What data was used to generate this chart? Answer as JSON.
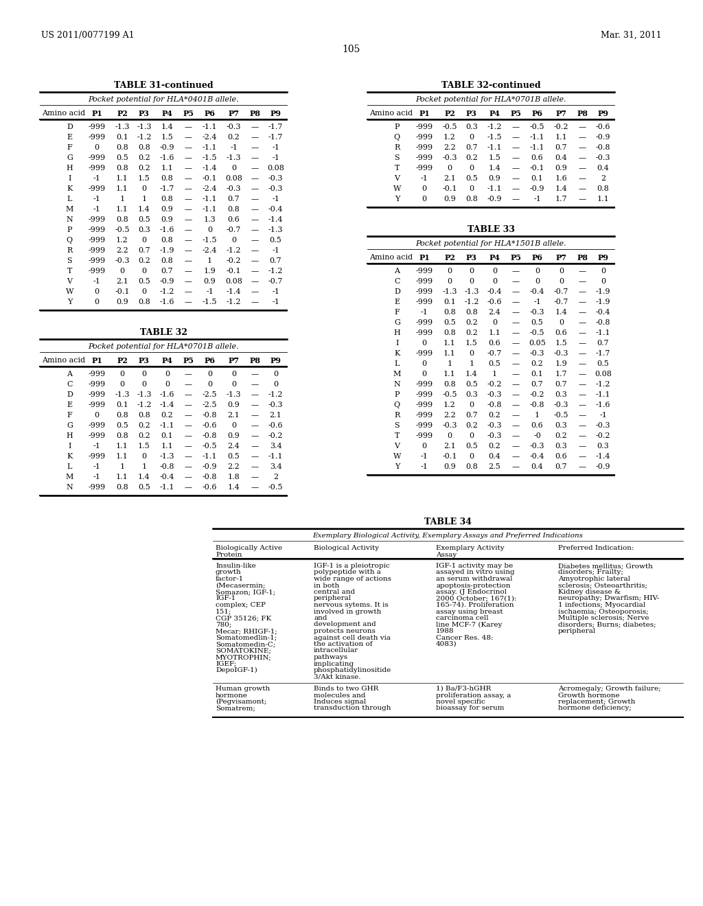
{
  "header_left": "US 2011/0077199 A1",
  "header_right": "Mar. 31, 2011",
  "page_number": "105",
  "bg_color": "#ffffff",
  "table31": {
    "title": "TABLE 31-continued",
    "subtitle": "Pocket potential for HLA*0401B allele.",
    "columns": [
      "Amino acid",
      "P1",
      "P2",
      "P3",
      "P4",
      "P5",
      "P6",
      "P7",
      "P8",
      "P9"
    ],
    "rows": [
      [
        "D",
        "-999",
        "-1.3",
        "-1.3",
        "1.4",
        "—",
        "-1.1",
        "-0.3",
        "—",
        "-1.7"
      ],
      [
        "E",
        "-999",
        "0.1",
        "-1.2",
        "1.5",
        "—",
        "-2.4",
        "0.2",
        "—",
        "-1.7"
      ],
      [
        "F",
        "0",
        "0.8",
        "0.8",
        "-0.9",
        "—",
        "-1.1",
        "-1",
        "—",
        "-1"
      ],
      [
        "G",
        "-999",
        "0.5",
        "0.2",
        "-1.6",
        "—",
        "-1.5",
        "-1.3",
        "—",
        "-1"
      ],
      [
        "H",
        "-999",
        "0.8",
        "0.2",
        "1.1",
        "—",
        "-1.4",
        "0",
        "—",
        "0.08"
      ],
      [
        "I",
        "-1",
        "1.1",
        "1.5",
        "0.8",
        "—",
        "-0.1",
        "0.08",
        "—",
        "-0.3"
      ],
      [
        "K",
        "-999",
        "1.1",
        "0",
        "-1.7",
        "—",
        "-2.4",
        "-0.3",
        "—",
        "-0.3"
      ],
      [
        "L",
        "-1",
        "1",
        "1",
        "0.8",
        "—",
        "-1.1",
        "0.7",
        "—",
        "-1"
      ],
      [
        "M",
        "-1",
        "1.1",
        "1.4",
        "0.9",
        "—",
        "-1.1",
        "0.8",
        "—",
        "-0.4"
      ],
      [
        "N",
        "-999",
        "0.8",
        "0.5",
        "0.9",
        "—",
        "1.3",
        "0.6",
        "—",
        "-1.4"
      ],
      [
        "P",
        "-999",
        "-0.5",
        "0.3",
        "-1.6",
        "—",
        "0",
        "-0.7",
        "—",
        "-1.3"
      ],
      [
        "Q",
        "-999",
        "1.2",
        "0",
        "0.8",
        "—",
        "-1.5",
        "0",
        "—",
        "0.5"
      ],
      [
        "R",
        "-999",
        "2.2",
        "0.7",
        "-1.9",
        "—",
        "-2.4",
        "-1.2",
        "—",
        "-1"
      ],
      [
        "S",
        "-999",
        "-0.3",
        "0.2",
        "0.8",
        "—",
        "1",
        "-0.2",
        "—",
        "0.7"
      ],
      [
        "T",
        "-999",
        "0",
        "0",
        "0.7",
        "—",
        "1.9",
        "-0.1",
        "—",
        "-1.2"
      ],
      [
        "V",
        "-1",
        "2.1",
        "0.5",
        "-0.9",
        "—",
        "0.9",
        "0.08",
        "—",
        "-0.7"
      ],
      [
        "W",
        "0",
        "-0.1",
        "0",
        "-1.2",
        "—",
        "-1",
        "-1.4",
        "—",
        "-1"
      ],
      [
        "Y",
        "0",
        "0.9",
        "0.8",
        "-1.6",
        "—",
        "-1.5",
        "-1.2",
        "—",
        "-1"
      ]
    ]
  },
  "table32": {
    "title": "TABLE 32",
    "subtitle": "Pocket potential for HLA*0701B allele.",
    "columns": [
      "Amino acid",
      "P1",
      "P2",
      "P3",
      "P4",
      "P5",
      "P6",
      "P7",
      "P8",
      "P9"
    ],
    "rows": [
      [
        "A",
        "-999",
        "0",
        "0",
        "0",
        "—",
        "0",
        "0",
        "—",
        "0"
      ],
      [
        "C",
        "-999",
        "0",
        "0",
        "0",
        "—",
        "0",
        "0",
        "—",
        "0"
      ],
      [
        "D",
        "-999",
        "-1.3",
        "-1.3",
        "-1.6",
        "—",
        "-2.5",
        "-1.3",
        "—",
        "-1.2"
      ],
      [
        "E",
        "-999",
        "0.1",
        "-1.2",
        "-1.4",
        "—",
        "-2.5",
        "0.9",
        "—",
        "-0.3"
      ],
      [
        "F",
        "0",
        "0.8",
        "0.8",
        "0.2",
        "—",
        "-0.8",
        "2.1",
        "—",
        "2.1"
      ],
      [
        "G",
        "-999",
        "0.5",
        "0.2",
        "-1.1",
        "—",
        "-0.6",
        "0",
        "—",
        "-0.6"
      ],
      [
        "H",
        "-999",
        "0.8",
        "0.2",
        "0.1",
        "—",
        "-0.8",
        "0.9",
        "—",
        "-0.2"
      ],
      [
        "I",
        "-1",
        "1.1",
        "1.5",
        "1.1",
        "—",
        "-0.5",
        "2.4",
        "—",
        "3.4"
      ],
      [
        "K",
        "-999",
        "1.1",
        "0",
        "-1.3",
        "—",
        "-1.1",
        "0.5",
        "—",
        "-1.1"
      ],
      [
        "L",
        "-1",
        "1",
        "1",
        "-0.8",
        "—",
        "-0.9",
        "2.2",
        "—",
        "3.4"
      ],
      [
        "M",
        "-1",
        "1.1",
        "1.4",
        "-0.4",
        "—",
        "-0.8",
        "1.8",
        "—",
        "2"
      ],
      [
        "N",
        "-999",
        "0.8",
        "0.5",
        "-1.1",
        "—",
        "-0.6",
        "1.4",
        "—",
        "-0.5"
      ]
    ]
  },
  "table32cont": {
    "title": "TABLE 32-continued",
    "subtitle": "Pocket potential for HLA*0701B allele.",
    "columns": [
      "Amino acid",
      "P1",
      "P2",
      "P3",
      "P4",
      "P5",
      "P6",
      "P7",
      "P8",
      "P9"
    ],
    "rows": [
      [
        "P",
        "-999",
        "-0.5",
        "0.3",
        "-1.2",
        "—",
        "-0.5",
        "-0.2",
        "—",
        "-0.6"
      ],
      [
        "Q",
        "-999",
        "1.2",
        "0",
        "-1.5",
        "—",
        "-1.1",
        "1.1",
        "—",
        "-0.9"
      ],
      [
        "R",
        "-999",
        "2.2",
        "0.7",
        "-1.1",
        "—",
        "-1.1",
        "0.7",
        "—",
        "-0.8"
      ],
      [
        "S",
        "-999",
        "-0.3",
        "0.2",
        "1.5",
        "—",
        "0.6",
        "0.4",
        "—",
        "-0.3"
      ],
      [
        "T",
        "-999",
        "0",
        "0",
        "1.4",
        "—",
        "-0.1",
        "0.9",
        "—",
        "0.4"
      ],
      [
        "V",
        "-1",
        "2.1",
        "0.5",
        "0.9",
        "—",
        "0.1",
        "1.6",
        "—",
        "2"
      ],
      [
        "W",
        "0",
        "-0.1",
        "0",
        "-1.1",
        "—",
        "-0.9",
        "1.4",
        "—",
        "0.8"
      ],
      [
        "Y",
        "0",
        "0.9",
        "0.8",
        "-0.9",
        "—",
        "-1",
        "1.7",
        "—",
        "1.1"
      ]
    ]
  },
  "table33": {
    "title": "TABLE 33",
    "subtitle": "Pocket potential for HLA*1501B allele.",
    "columns": [
      "Amino acid",
      "P1",
      "P2",
      "P3",
      "P4",
      "P5",
      "P6",
      "P7",
      "P8",
      "P9"
    ],
    "rows": [
      [
        "A",
        "-999",
        "0",
        "0",
        "0",
        "—",
        "0",
        "0",
        "—",
        "0"
      ],
      [
        "C",
        "-999",
        "0",
        "0",
        "0",
        "—",
        "0",
        "0",
        "—",
        "0"
      ],
      [
        "D",
        "-999",
        "-1.3",
        "-1.3",
        "-0.4",
        "—",
        "-0.4",
        "-0.7",
        "—",
        "-1.9"
      ],
      [
        "E",
        "-999",
        "0.1",
        "-1.2",
        "-0.6",
        "—",
        "-1",
        "-0.7",
        "—",
        "-1.9"
      ],
      [
        "F",
        "-1",
        "0.8",
        "0.8",
        "2.4",
        "—",
        "-0.3",
        "1.4",
        "—",
        "-0.4"
      ],
      [
        "G",
        "-999",
        "0.5",
        "0.2",
        "0",
        "—",
        "0.5",
        "0",
        "—",
        "-0.8"
      ],
      [
        "H",
        "-999",
        "0.8",
        "0.2",
        "1.1",
        "—",
        "-0.5",
        "0.6",
        "—",
        "-1.1"
      ],
      [
        "I",
        "0",
        "1.1",
        "1.5",
        "0.6",
        "—",
        "0.05",
        "1.5",
        "—",
        "0.7"
      ],
      [
        "K",
        "-999",
        "1.1",
        "0",
        "-0.7",
        "—",
        "-0.3",
        "-0.3",
        "—",
        "-1.7"
      ],
      [
        "L",
        "0",
        "1",
        "1",
        "0.5",
        "—",
        "0.2",
        "1.9",
        "—",
        "0.5"
      ],
      [
        "M",
        "0",
        "1.1",
        "1.4",
        "1",
        "—",
        "0.1",
        "1.7",
        "—",
        "0.08"
      ],
      [
        "N",
        "-999",
        "0.8",
        "0.5",
        "-0.2",
        "—",
        "0.7",
        "0.7",
        "—",
        "-1.2"
      ],
      [
        "P",
        "-999",
        "-0.5",
        "0.3",
        "-0.3",
        "—",
        "-0.2",
        "0.3",
        "—",
        "-1.1"
      ],
      [
        "Q",
        "-999",
        "1.2",
        "0",
        "-0.8",
        "—",
        "-0.8",
        "-0.3",
        "—",
        "-1.6"
      ],
      [
        "R",
        "-999",
        "2.2",
        "0.7",
        "0.2",
        "—",
        "1",
        "-0.5",
        "—",
        "-1"
      ],
      [
        "S",
        "-999",
        "-0.3",
        "0.2",
        "-0.3",
        "—",
        "0.6",
        "0.3",
        "—",
        "-0.3"
      ],
      [
        "T",
        "-999",
        "0",
        "0",
        "-0.3",
        "—",
        "-0",
        "0.2",
        "—",
        "-0.2"
      ],
      [
        "V",
        "0",
        "2.1",
        "0.5",
        "0.2",
        "—",
        "-0.3",
        "0.3",
        "—",
        "0.3"
      ],
      [
        "W",
        "-1",
        "-0.1",
        "0",
        "0.4",
        "—",
        "-0.4",
        "0.6",
        "—",
        "-1.4"
      ],
      [
        "Y",
        "-1",
        "0.9",
        "0.8",
        "2.5",
        "—",
        "0.4",
        "0.7",
        "—",
        "-0.9"
      ]
    ]
  },
  "table34": {
    "title": "TABLE 34",
    "subtitle": "Exemplary Biological Activity, Exemplary Assays and Preferred Indications",
    "col_headers": [
      "Biologically Active\nProtein",
      "Biological Activity",
      "Exemplary Activity\nAssay",
      "Preferred Indication:"
    ],
    "rows": [
      {
        "protein": "Insulin-like\ngrowth\nfactor-1\n(Mecasermin;\nSomazon; IGF-1;\nIGF-1\ncomplex; CEP\n151;\nCGP 35126; FK\n780;\nMecar; RHIGF-1;\nSomatomedlin-1;\nSomatomedin-C;\nSOMATOKINE;\nMYOTROPHIN;\nIGEF;\nDepoIGF-1)",
        "bio_activity": "IGF-1 is a pleiotropic\npolypeptide with a\nwide range of actions\nin both\ncentral and\nperipheral\nnervous sytems. It is\ninvolved in growth\nand\ndevelopment and\nprotects neurons\nagainst cell death via\nthe activation of\nintracellular\npathways\nimplicating\nphosphatidylinositide\n3/Akt kinase.",
        "assay": "IGF-1 activity may be\nassayed in vitro using\nan serum withdrawal\napoptosis-protection\nassay. (J Endocrinol\n2000 October; 167(1):\n165-74). Proliferation\nassay using breast\ncarcinoma cell\nline MCF-7 (Karey\n1988\nCancer Res. 48:\n4083)",
        "indication": "Diabetes mellitus; Growth\ndisorders; Frailty;\nAmyotrophic lateral\nsclerosis; Osteoarthritis;\nKidney disease &\nneuropathy; Dwarfism; HIV-\n1 infections; Myocardial\nischaemia; Osteoporosis;\nMultiple sclerosis; Nerve\ndisorders; Burns; diabetes;\nperipheral"
      },
      {
        "protein": "Human growth\nhormone\n(Pegvisamont;\nSomatrem;",
        "bio_activity": "Binds to two GHR\nmolecules and\nInduces signal\ntransduction through",
        "assay": "1) Ba/F3-hGHR\nproliferation assay, a\nnovel specific\nbioassay for serum",
        "indication": "Acromegaly; Growth failure;\nGrowth hormone\nreplacement; Growth\nhormone deficiency;"
      }
    ]
  }
}
